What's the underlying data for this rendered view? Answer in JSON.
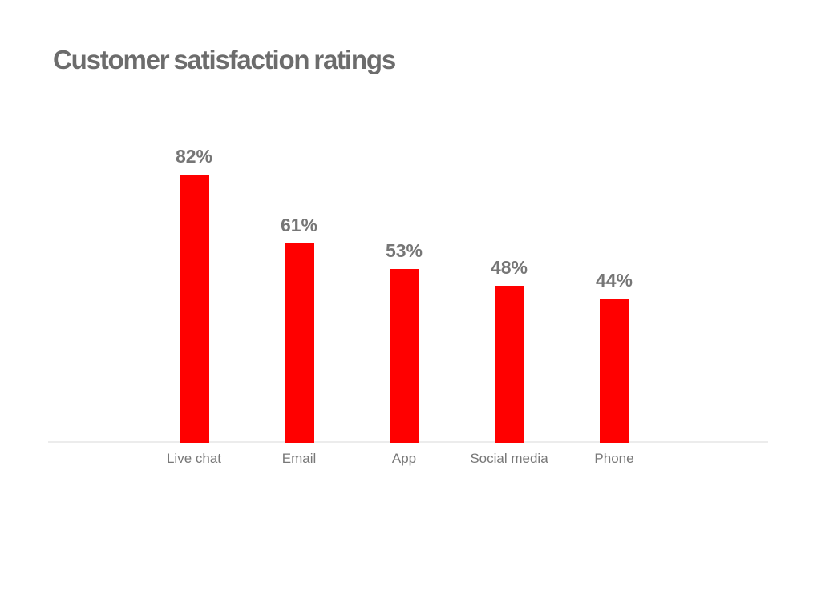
{
  "page": {
    "background": "#ffffff"
  },
  "chart_data": {
    "type": "bar",
    "title": "Customer satisfaction ratings",
    "categories": [
      "Live chat",
      "Email",
      "App",
      "Social media",
      "Phone"
    ],
    "values": [
      82,
      61,
      53,
      48,
      44
    ],
    "value_labels": [
      "82%",
      "61%",
      "53%",
      "48%",
      "44%"
    ],
    "xlabel": "",
    "ylabel": "",
    "ylim": [
      0,
      100
    ],
    "grid": false,
    "legend": false,
    "colors": {
      "bar": "#ff0000",
      "title": "#6c6c6c",
      "value_label": "#767676",
      "category_label": "#787878",
      "axis_line": "#ececec"
    }
  }
}
